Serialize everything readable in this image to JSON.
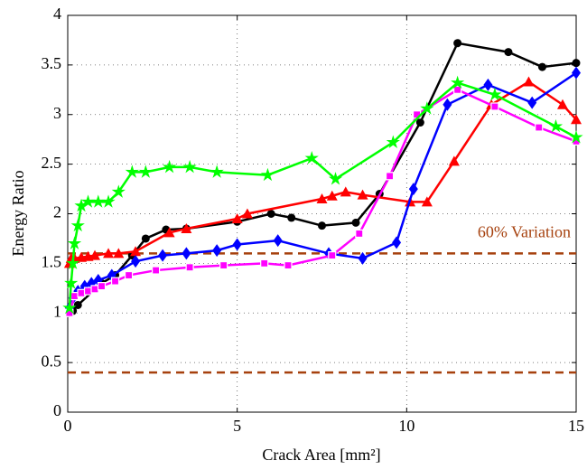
{
  "chart_data": {
    "type": "line",
    "xlabel": "Crack Area [mm²]",
    "ylabel": "Energy Ratio",
    "xlim": [
      0,
      15
    ],
    "ylim": [
      0,
      4
    ],
    "xticks": [
      0,
      5,
      10,
      15
    ],
    "yticks": [
      0,
      0.5,
      1,
      1.5,
      2,
      2.5,
      3,
      3.5,
      4
    ],
    "grid": true,
    "reference_lines": [
      1.6,
      0.4
    ],
    "reference_color": "#a6410e",
    "annotation": "60% Variation",
    "series": [
      {
        "color": "#000000",
        "marker": "circle",
        "x": [
          0.05,
          0.15,
          0.3,
          1.0,
          1.4,
          1.9,
          2.3,
          2.9,
          3.5,
          5.0,
          6.0,
          6.6,
          7.5,
          8.5,
          9.2,
          10.4,
          11.5,
          13.0,
          14.0,
          15.0
        ],
        "values": [
          1.0,
          1.02,
          1.08,
          1.3,
          1.38,
          1.58,
          1.75,
          1.84,
          1.85,
          1.92,
          2.0,
          1.96,
          1.88,
          1.91,
          2.2,
          2.92,
          3.72,
          3.63,
          3.48,
          3.52
        ]
      },
      {
        "color": "#ff0000",
        "marker": "triangle",
        "x": [
          0.05,
          0.1,
          0.2,
          0.4,
          0.6,
          0.8,
          1.2,
          1.5,
          2.0,
          3.0,
          3.5,
          5.0,
          5.3,
          7.5,
          7.8,
          8.2,
          8.7,
          10.1,
          10.6,
          11.4,
          12.5,
          13.6,
          14.6,
          15.0
        ],
        "values": [
          1.5,
          1.55,
          1.55,
          1.56,
          1.57,
          1.58,
          1.6,
          1.6,
          1.62,
          1.81,
          1.85,
          1.95,
          2.0,
          2.15,
          2.18,
          2.22,
          2.19,
          2.12,
          2.12,
          2.53,
          3.1,
          3.33,
          3.1,
          2.95
        ]
      },
      {
        "color": "#0000ff",
        "marker": "diamond",
        "x": [
          0.05,
          0.15,
          0.3,
          0.5,
          0.7,
          0.9,
          1.3,
          2.0,
          2.8,
          3.5,
          4.4,
          5.0,
          6.2,
          7.7,
          8.7,
          9.7,
          10.2,
          11.2,
          12.4,
          13.7,
          15.0
        ],
        "values": [
          1.05,
          1.15,
          1.22,
          1.27,
          1.3,
          1.33,
          1.38,
          1.52,
          1.58,
          1.6,
          1.63,
          1.69,
          1.73,
          1.6,
          1.55,
          1.71,
          2.25,
          3.1,
          3.3,
          3.12,
          3.42
        ]
      },
      {
        "color": "#ff00ff",
        "marker": "square",
        "x": [
          0.05,
          0.2,
          0.4,
          0.6,
          0.8,
          1.0,
          1.4,
          1.8,
          2.6,
          3.6,
          4.6,
          5.8,
          6.5,
          7.8,
          8.6,
          9.5,
          10.3,
          11.5,
          12.6,
          13.9,
          15.0
        ],
        "values": [
          1.0,
          1.17,
          1.2,
          1.22,
          1.24,
          1.27,
          1.32,
          1.38,
          1.43,
          1.46,
          1.48,
          1.5,
          1.48,
          1.58,
          1.8,
          2.38,
          3.0,
          3.25,
          3.08,
          2.87,
          2.73
        ]
      },
      {
        "color": "#00ff00",
        "marker": "star",
        "x": [
          0.05,
          0.1,
          0.15,
          0.2,
          0.3,
          0.4,
          0.6,
          0.9,
          1.2,
          1.5,
          1.9,
          2.3,
          3.0,
          3.6,
          4.4,
          5.9,
          7.2,
          7.9,
          9.6,
          10.6,
          11.5,
          12.6,
          14.4,
          15.0
        ],
        "values": [
          1.05,
          1.3,
          1.5,
          1.7,
          1.88,
          2.08,
          2.12,
          2.12,
          2.12,
          2.22,
          2.42,
          2.42,
          2.47,
          2.47,
          2.42,
          2.39,
          2.56,
          2.35,
          2.72,
          3.06,
          3.32,
          3.2,
          2.88,
          2.77
        ]
      }
    ]
  }
}
